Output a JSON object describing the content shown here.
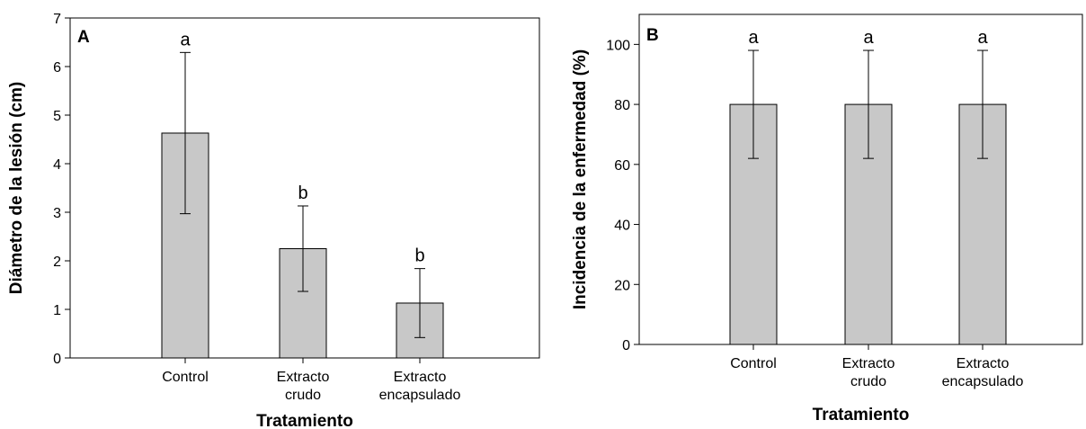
{
  "chart_data": [
    {
      "type": "bar",
      "panel": "A",
      "categories": [
        [
          "Control"
        ],
        [
          "Extracto",
          "crudo"
        ],
        [
          "Extracto",
          "encapsulado"
        ]
      ],
      "values": [
        4.63,
        2.25,
        1.13
      ],
      "errors": [
        1.66,
        0.88,
        0.71
      ],
      "significance": [
        "a",
        "b",
        "b"
      ],
      "ylabel": "Diámetro de la lesión (cm)",
      "xlabel": "Tratamiento",
      "ylim": [
        0,
        7
      ],
      "yticks": [
        0,
        1,
        2,
        3,
        4,
        5,
        6,
        7
      ],
      "bar_color": "#c8c8c8"
    },
    {
      "type": "bar",
      "panel": "B",
      "categories": [
        [
          "Control"
        ],
        [
          "Extracto",
          "crudo"
        ],
        [
          "Extracto",
          "encapsulado"
        ]
      ],
      "values": [
        80,
        80,
        80
      ],
      "errors": [
        18,
        18,
        18
      ],
      "significance": [
        "a",
        "a",
        "a"
      ],
      "ylabel": "Incidencia de la enfermedad (%)",
      "xlabel": "Tratamiento",
      "ylim": [
        0,
        110
      ],
      "yticks": [
        0,
        20,
        40,
        60,
        80,
        100
      ],
      "bar_color": "#c8c8c8"
    }
  ]
}
